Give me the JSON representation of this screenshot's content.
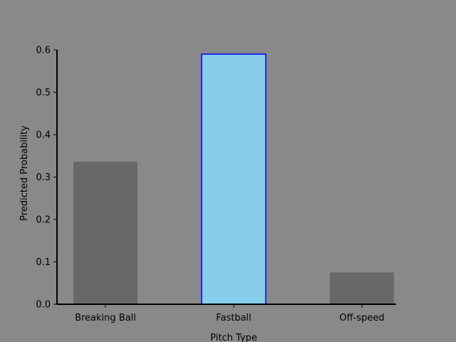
{
  "chart_data": {
    "type": "bar",
    "title": "",
    "xlabel": "Pitch Type",
    "ylabel": "Predicted Probability",
    "categories": [
      "Breaking Ball",
      "Fastball",
      "Off-speed"
    ],
    "values": [
      0.336,
      0.59,
      0.075
    ],
    "highlight_index": 1,
    "ylim": [
      0,
      0.6
    ],
    "yticks": [
      "0.0",
      "0.1",
      "0.2",
      "0.3",
      "0.4",
      "0.5",
      "0.6"
    ],
    "grid": false,
    "legend": "none",
    "colors": {
      "background": "#898989",
      "bar": "#686868",
      "highlight_fill": "#87ceeb",
      "highlight_edge": "#0000ff",
      "axis": "#000000"
    }
  }
}
